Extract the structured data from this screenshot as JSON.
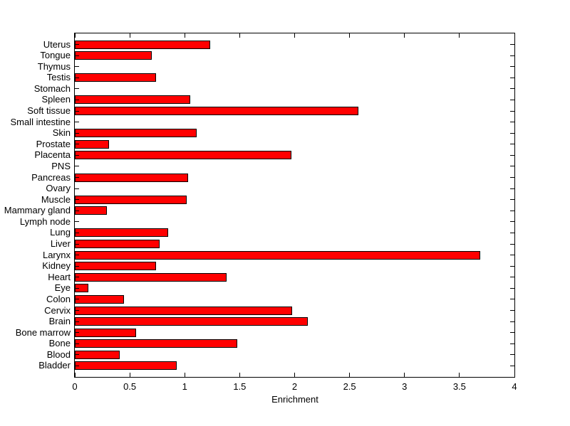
{
  "chart_data": {
    "type": "bar",
    "orientation": "horizontal",
    "title": "",
    "xlabel": "Enrichment",
    "ylabel": "",
    "categories": [
      "Uterus",
      "Tongue",
      "Thymus",
      "Testis",
      "Stomach",
      "Spleen",
      "Soft tissue",
      "Small intestine",
      "Skin",
      "Prostate",
      "Placenta",
      "PNS",
      "Pancreas",
      "Ovary",
      "Muscle",
      "Mammary gland",
      "Lymph node",
      "Lung",
      "Liver",
      "Larynx",
      "Kidney",
      "Heart",
      "Eye",
      "Colon",
      "Cervix",
      "Brain",
      "Bone marrow",
      "Bone",
      "Blood",
      "Bladder"
    ],
    "values": [
      1.23,
      0.7,
      0,
      0.74,
      0,
      1.05,
      2.58,
      0,
      1.11,
      0.31,
      1.97,
      0,
      1.03,
      0,
      1.02,
      0.29,
      0,
      0.85,
      0.77,
      3.69,
      0.74,
      1.38,
      0.12,
      0.45,
      1.98,
      2.12,
      0.56,
      1.48,
      0.41,
      0.93
    ],
    "xlim": [
      0,
      4
    ],
    "xticks": [
      0,
      0.5,
      1,
      1.5,
      2,
      2.5,
      3,
      3.5,
      4
    ],
    "xtick_labels": [
      "0",
      "0.5",
      "1",
      "1.5",
      "2",
      "2.5",
      "3",
      "3.5",
      "4"
    ],
    "grid": false,
    "legend": "none",
    "bar_color": "#ff0000",
    "bar_edge_color": "#000000",
    "axis_color": "#000000",
    "background_color": "#ffffff"
  }
}
